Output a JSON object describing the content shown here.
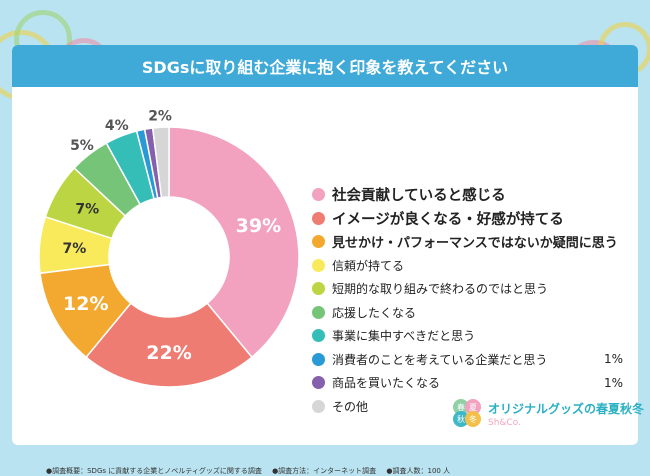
{
  "header": {
    "title": "SDGsに取り組む企業に抱く印象を教えてください"
  },
  "chart_data": {
    "type": "pie",
    "categories": [
      "社会貢献していると感じる",
      "イメージが良くなる・好感が持てる",
      "見せかけ・パフォーマンスではないか疑問に思う",
      "信頼が持てる",
      "短期的な取り組みで終わるのではと思う",
      "応援したくなる",
      "事業に集中すべきだと思う",
      "消費者のことを考えている企業だと思う",
      "商品を買いたくなる",
      "その他"
    ],
    "values": [
      39,
      22,
      12,
      7,
      7,
      5,
      4,
      1,
      1,
      2
    ],
    "data_labels": [
      "39%",
      "22%",
      "12%",
      "7%",
      "7%",
      "5%",
      "4%",
      "1%",
      "1%",
      "2%"
    ],
    "colors": [
      "#f2a2bf",
      "#ee7c73",
      "#f3a930",
      "#f9ea5c",
      "#bcd542",
      "#76c478",
      "#35bdb8",
      "#2a9ad6",
      "#8560ac",
      "#d6d6d6"
    ],
    "legend_position": "right"
  },
  "footer": {
    "survey": "●調査概要：SDGs に貢献する企業とノベルティグッズに関する調査",
    "method": "●調査方法：インターネット調査",
    "count": "●調査人数：100 人"
  },
  "logo": {
    "title": "オリジナルグッズの春夏秋冬",
    "subtitle": "Sh&Co.",
    "mark_chars": [
      "春",
      "夏",
      "秋",
      "冬"
    ]
  }
}
